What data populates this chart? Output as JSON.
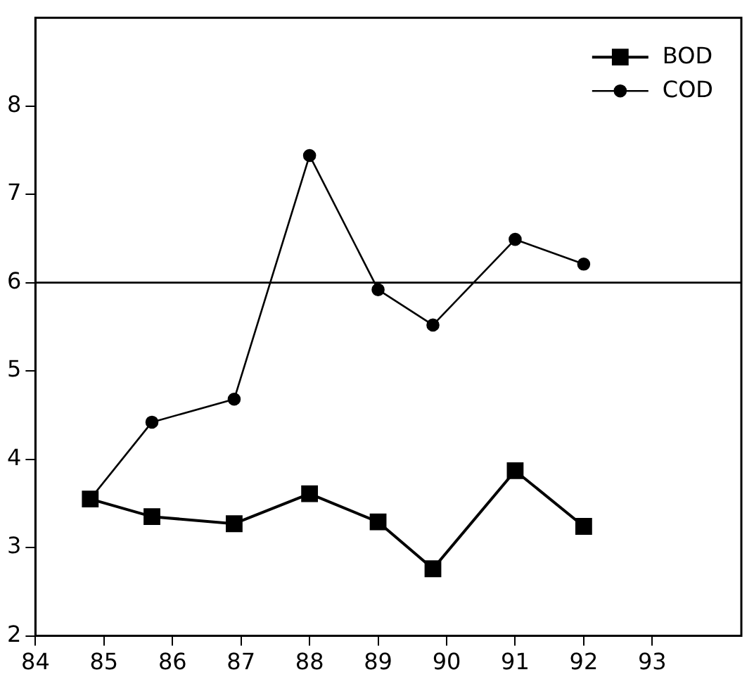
{
  "chart_data": {
    "type": "line",
    "xlim": [
      84,
      94.3
    ],
    "xticks": [
      84,
      85,
      86,
      87,
      88,
      89,
      90,
      91,
      92,
      93
    ],
    "ylim": [
      2,
      9
    ],
    "yticks": [
      2,
      3,
      4,
      5,
      6,
      7,
      8
    ],
    "grid": false,
    "legend": "top right",
    "series": [
      {
        "name": "BOD",
        "color": "#000000",
        "marker": "square",
        "x": [
          84.8,
          85.7,
          86.9,
          88.0,
          89.0,
          89.8,
          91.0,
          92.0
        ],
        "values": [
          3.55,
          3.35,
          3.27,
          3.61,
          3.29,
          2.76,
          3.87,
          3.24
        ]
      },
      {
        "name": "COD",
        "color": "#000000",
        "marker": "circle",
        "x": [
          84.8,
          85.7,
          86.9,
          88.0,
          89.0,
          89.8,
          91.0,
          92.0
        ],
        "values": [
          3.55,
          4.42,
          4.68,
          7.44,
          5.92,
          5.52,
          6.49,
          6.21
        ]
      }
    ],
    "ref_lines": [
      {
        "axis": "y",
        "value": 6,
        "color": "#000000"
      }
    ]
  }
}
